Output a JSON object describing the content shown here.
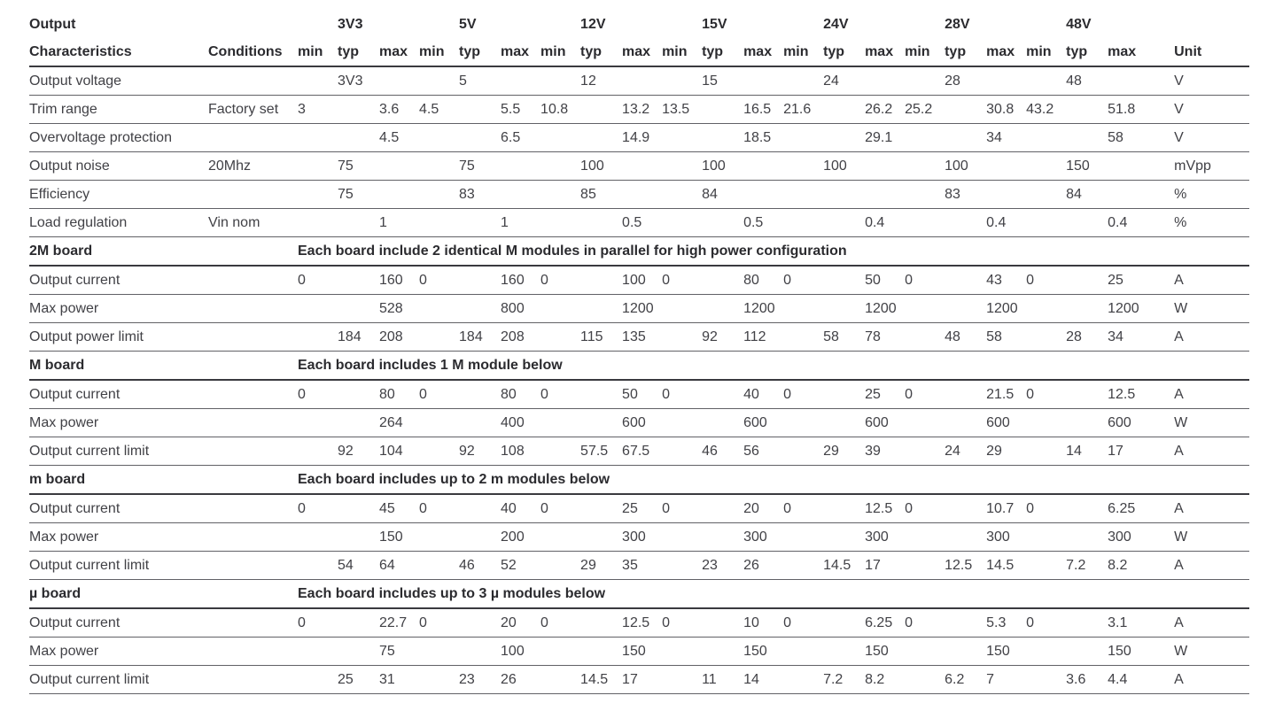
{
  "table": {
    "header": {
      "output_label": "Output",
      "characteristics_label": "Characteristics",
      "conditions_label": "Conditions",
      "unit_label": "Unit",
      "groups": [
        "3V3",
        "5V",
        "12V",
        "15V",
        "24V",
        "28V",
        "48V"
      ],
      "subcols": [
        "min",
        "typ",
        "max"
      ]
    },
    "rows": [
      {
        "type": "data",
        "characteristic": "Output voltage",
        "condition": "",
        "values": [
          "",
          "3V3",
          "",
          "",
          "5",
          "",
          "",
          "12",
          "",
          "",
          "15",
          "",
          "",
          "24",
          "",
          "",
          "28",
          "",
          "",
          "48",
          ""
        ],
        "unit": "V"
      },
      {
        "type": "data",
        "characteristic": "Trim range",
        "condition": "Factory set",
        "values": [
          "3",
          "",
          "3.6",
          "4.5",
          "",
          "5.5",
          "10.8",
          "",
          "13.2",
          "13.5",
          "",
          "16.5",
          "21.6",
          "",
          "26.2",
          "25.2",
          "",
          "30.8",
          "43.2",
          "",
          "51.8"
        ],
        "unit": "V"
      },
      {
        "type": "data",
        "characteristic": "Overvoltage protection",
        "condition": "",
        "values": [
          "",
          "",
          "4.5",
          "",
          "",
          "6.5",
          "",
          "",
          "14.9",
          "",
          "",
          "18.5",
          "",
          "",
          "29.1",
          "",
          "",
          "34",
          "",
          "",
          "58"
        ],
        "unit": "V"
      },
      {
        "type": "data",
        "characteristic": "Output noise",
        "condition": "20Mhz",
        "values": [
          "",
          "75",
          "",
          "",
          "75",
          "",
          "",
          "100",
          "",
          "",
          "100",
          "",
          "",
          "100",
          "",
          "",
          "100",
          "",
          "",
          "150",
          ""
        ],
        "unit": "mVpp"
      },
      {
        "type": "data",
        "characteristic": "Efficiency",
        "condition": "",
        "values": [
          "",
          "75",
          "",
          "",
          "83",
          "",
          "",
          "85",
          "",
          "",
          "84",
          "",
          "",
          "",
          "",
          "",
          "83",
          "",
          "",
          "84",
          ""
        ],
        "unit": "%"
      },
      {
        "type": "data",
        "characteristic": "Load regulation",
        "condition": "Vin nom",
        "values": [
          "",
          "",
          "1",
          "",
          "",
          "1",
          "",
          "",
          "0.5",
          "",
          "",
          "0.5",
          "",
          "",
          "0.4",
          "",
          "",
          "0.4",
          "",
          "",
          "0.4"
        ],
        "unit": "%"
      },
      {
        "type": "section",
        "title": "2M board",
        "description": "Each board include 2 identical M modules in parallel for high power configuration"
      },
      {
        "type": "data",
        "characteristic": "Output current",
        "condition": "",
        "values": [
          "0",
          "",
          "160",
          "0",
          "",
          "160",
          "0",
          "",
          "100",
          "0",
          "",
          "80",
          "0",
          "",
          "50",
          "0",
          "",
          "43",
          "0",
          "",
          "25"
        ],
        "unit": "A"
      },
      {
        "type": "data",
        "characteristic": "Max power",
        "condition": "",
        "values": [
          "",
          "",
          "528",
          "",
          "",
          "800",
          "",
          "",
          "1200",
          "",
          "",
          "1200",
          "",
          "",
          "1200",
          "",
          "",
          "1200",
          "",
          "",
          "1200"
        ],
        "unit": "W"
      },
      {
        "type": "data",
        "characteristic": "Output power limit",
        "condition": "",
        "values": [
          "",
          "184",
          "208",
          "",
          "184",
          "208",
          "",
          "115",
          "135",
          "",
          "92",
          "112",
          "",
          "58",
          "78",
          "",
          "48",
          "58",
          "",
          "28",
          "34"
        ],
        "unit": "A"
      },
      {
        "type": "section",
        "title": "M board",
        "description": "Each board includes 1 M module below"
      },
      {
        "type": "data",
        "characteristic": "Output current",
        "condition": "",
        "values": [
          "0",
          "",
          "80",
          "0",
          "",
          "80",
          "0",
          "",
          "50",
          "0",
          "",
          "40",
          "0",
          "",
          "25",
          "0",
          "",
          "21.5",
          "0",
          "",
          "12.5"
        ],
        "unit": "A"
      },
      {
        "type": "data",
        "characteristic": "Max power",
        "condition": "",
        "values": [
          "",
          "",
          "264",
          "",
          "",
          "400",
          "",
          "",
          "600",
          "",
          "",
          "600",
          "",
          "",
          "600",
          "",
          "",
          "600",
          "",
          "",
          "600"
        ],
        "unit": "W"
      },
      {
        "type": "data",
        "characteristic": "Output current limit",
        "condition": "",
        "values": [
          "",
          "92",
          "104",
          "",
          "92",
          "108",
          "",
          "57.5",
          "67.5",
          "",
          "46",
          "56",
          "",
          "29",
          "39",
          "",
          "24",
          "29",
          "",
          "14",
          "17"
        ],
        "unit": "A"
      },
      {
        "type": "section",
        "title": "m board",
        "description": "Each board includes up to 2 m modules below"
      },
      {
        "type": "data",
        "characteristic": "Output current",
        "condition": "",
        "values": [
          "0",
          "",
          "45",
          "0",
          "",
          "40",
          "0",
          "",
          "25",
          "0",
          "",
          "20",
          "0",
          "",
          "12.5",
          "0",
          "",
          "10.7",
          "0",
          "",
          "6.25"
        ],
        "unit": "A"
      },
      {
        "type": "data",
        "characteristic": "Max power",
        "condition": "",
        "values": [
          "",
          "",
          "150",
          "",
          "",
          "200",
          "",
          "",
          "300",
          "",
          "",
          "300",
          "",
          "",
          "300",
          "",
          "",
          "300",
          "",
          "",
          "300"
        ],
        "unit": "W"
      },
      {
        "type": "data",
        "characteristic": "Output current limit",
        "condition": "",
        "values": [
          "",
          "54",
          "64",
          "",
          "46",
          "52",
          "",
          "29",
          "35",
          "",
          "23",
          "26",
          "",
          "14.5",
          "17",
          "",
          "12.5",
          "14.5",
          "",
          "7.2",
          "8.2"
        ],
        "unit": "A"
      },
      {
        "type": "section",
        "title": "µ board",
        "description": "Each board includes up to 3 µ modules below"
      },
      {
        "type": "data",
        "characteristic": "Output current",
        "condition": "",
        "values": [
          "0",
          "",
          "22.7",
          "0",
          "",
          "20",
          "0",
          "",
          "12.5",
          "0",
          "",
          "10",
          "0",
          "",
          "6.25",
          "0",
          "",
          "5.3",
          "0",
          "",
          "3.1"
        ],
        "unit": "A"
      },
      {
        "type": "data",
        "characteristic": "Max power",
        "condition": "",
        "values": [
          "",
          "",
          "75",
          "",
          "",
          "100",
          "",
          "",
          "150",
          "",
          "",
          "150",
          "",
          "",
          "150",
          "",
          "",
          "150",
          "",
          "",
          "150"
        ],
        "unit": "W"
      },
      {
        "type": "data",
        "characteristic": "Output current limit",
        "condition": "",
        "values": [
          "",
          "25",
          "31",
          "",
          "23",
          "26",
          "",
          "14.5",
          "17",
          "",
          "11",
          "14",
          "",
          "7.2",
          "8.2",
          "",
          "6.2",
          "7",
          "",
          "3.6",
          "4.4"
        ],
        "unit": "A"
      }
    ]
  },
  "colors": {
    "text": "#414146",
    "heading_text": "#2b2b2f",
    "rule_light": "#616166",
    "rule_strong": "#3a3a3f",
    "background": "#ffffff"
  }
}
